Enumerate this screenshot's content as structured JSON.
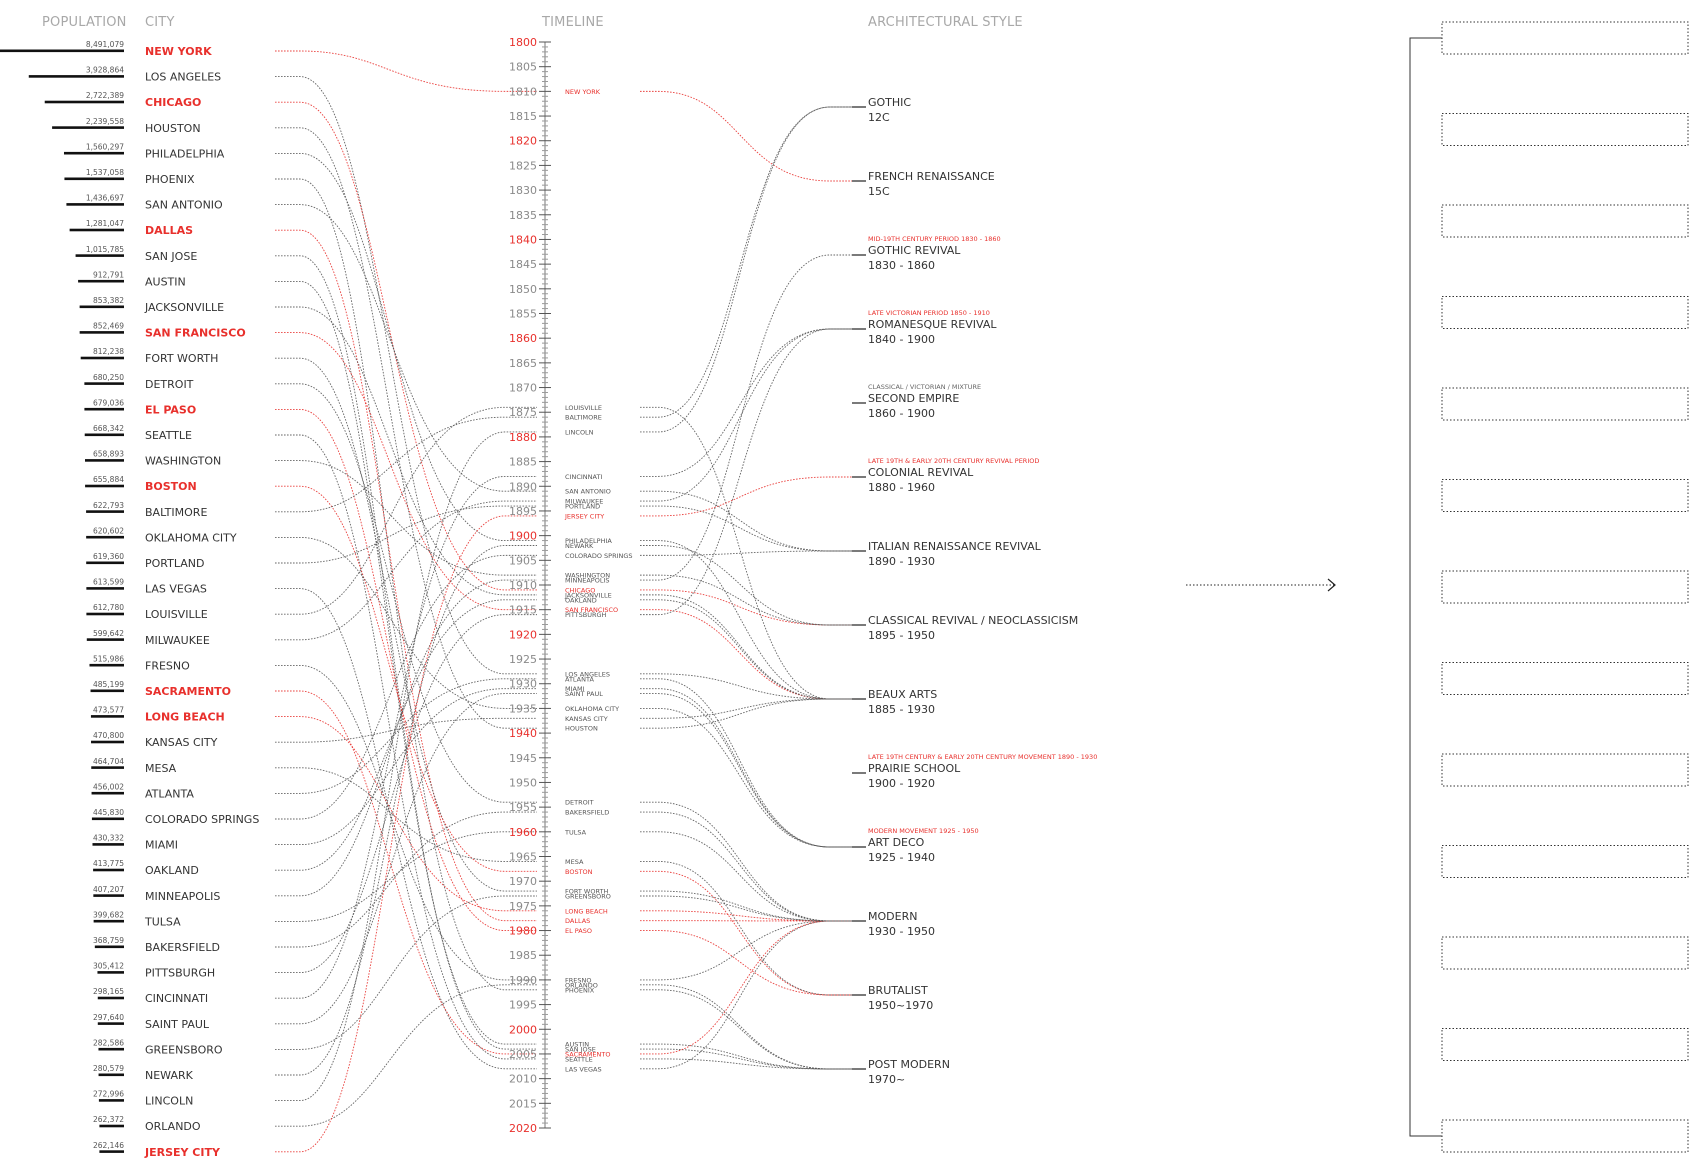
{
  "headers": {
    "population": "POPULATION",
    "city": "CITY",
    "timeline": "TIMELINE",
    "style": "ARCHITECTURAL STYLE"
  },
  "colors": {
    "highlight": "#e8302c",
    "grey": "#555555",
    "header": "#a8a8a8"
  },
  "cities": [
    {
      "name": "NEW YORK",
      "pop": "8,491,079",
      "value": 8491079,
      "hl": true,
      "year": 1810,
      "style": "FRENCH RENAISSANCE"
    },
    {
      "name": "LOS ANGELES",
      "pop": "3,928,864",
      "value": 3928864,
      "hl": false,
      "year": 1928,
      "style": "BEAUX ARTS"
    },
    {
      "name": "CHICAGO",
      "pop": "2,722,389",
      "value": 2722389,
      "hl": true,
      "year": 1911,
      "style": "CLASSICAL REVIVAL / NEOCLASSICISM"
    },
    {
      "name": "HOUSTON",
      "pop": "2,239,558",
      "value": 2239558,
      "hl": false,
      "year": 1939,
      "style": "BEAUX ARTS"
    },
    {
      "name": "PHILADELPHIA",
      "pop": "1,560,297",
      "value": 1560297,
      "hl": false,
      "year": 1901,
      "style": "BEAUX ARTS"
    },
    {
      "name": "PHOENIX",
      "pop": "1,537,058",
      "value": 1537058,
      "hl": false,
      "year": 1992,
      "style": "POST MODERN"
    },
    {
      "name": "SAN ANTONIO",
      "pop": "1,436,697",
      "value": 1436697,
      "hl": false,
      "year": 1891,
      "style": "ITALIAN RENAISSANCE REVIVAL"
    },
    {
      "name": "DALLAS",
      "pop": "1,281,047",
      "value": 1281047,
      "hl": true,
      "year": 1978,
      "style": "MODERN"
    },
    {
      "name": "SAN JOSE",
      "pop": "1,015,785",
      "value": 1015785,
      "hl": false,
      "year": 2004,
      "style": "POST MODERN"
    },
    {
      "name": "AUSTIN",
      "pop": "912,791",
      "value": 912791,
      "hl": false,
      "year": 2003,
      "style": "POST MODERN"
    },
    {
      "name": "JACKSONVILLE",
      "pop": "853,382",
      "value": 853382,
      "hl": false,
      "year": 1912,
      "style": "BEAUX ARTS"
    },
    {
      "name": "SAN FRANCISCO",
      "pop": "852,469",
      "value": 852469,
      "hl": true,
      "year": 1915,
      "style": "BEAUX ARTS"
    },
    {
      "name": "FORT WORTH",
      "pop": "812,238",
      "value": 812238,
      "hl": false,
      "year": 1972,
      "style": "MODERN"
    },
    {
      "name": "DETROIT",
      "pop": "680,250",
      "value": 680250,
      "hl": false,
      "year": 1954,
      "style": "MODERN"
    },
    {
      "name": "EL PASO",
      "pop": "679,036",
      "value": 679036,
      "hl": true,
      "year": 1980,
      "style": "BRUTALIST"
    },
    {
      "name": "SEATTLE",
      "pop": "668,342",
      "value": 668342,
      "hl": false,
      "year": 2006,
      "style": "POST MODERN"
    },
    {
      "name": "WASHINGTON",
      "pop": "658,893",
      "value": 658893,
      "hl": false,
      "year": 1908,
      "style": "CLASSICAL REVIVAL / NEOCLASSICISM"
    },
    {
      "name": "BOSTON",
      "pop": "655,884",
      "value": 655884,
      "hl": true,
      "year": 1968,
      "style": "BRUTALIST"
    },
    {
      "name": "BALTIMORE",
      "pop": "622,793",
      "value": 622793,
      "hl": false,
      "year": 1876,
      "style": "GOTHIC"
    },
    {
      "name": "OKLAHOMA CITY",
      "pop": "620,602",
      "value": 620602,
      "hl": false,
      "year": 1935,
      "style": "ART DECO"
    },
    {
      "name": "PORTLAND",
      "pop": "619,360",
      "value": 619360,
      "hl": false,
      "year": 1894,
      "style": "ITALIAN RENAISSANCE REVIVAL"
    },
    {
      "name": "LAS VEGAS",
      "pop": "613,599",
      "value": 613599,
      "hl": false,
      "year": 2008,
      "style": "MODERN"
    },
    {
      "name": "LOUISVILLE",
      "pop": "612,780",
      "value": 612780,
      "hl": false,
      "year": 1874,
      "style": "BEAUX ARTS"
    },
    {
      "name": "MILWAUKEE",
      "pop": "599,642",
      "value": 599642,
      "hl": false,
      "year": 1893,
      "style": "ROMANESQUE REVIVAL"
    },
    {
      "name": "FRESNO",
      "pop": "515,986",
      "value": 515986,
      "hl": false,
      "year": 1990,
      "style": "MODERN"
    },
    {
      "name": "SACRAMENTO",
      "pop": "485,199",
      "value": 485199,
      "hl": true,
      "year": 2005,
      "style": "MODERN"
    },
    {
      "name": "LONG BEACH",
      "pop": "473,577",
      "value": 473577,
      "hl": true,
      "year": 1976,
      "style": "MODERN"
    },
    {
      "name": "KANSAS CITY",
      "pop": "470,800",
      "value": 470800,
      "hl": false,
      "year": 1937,
      "style": "BEAUX ARTS"
    },
    {
      "name": "MESA",
      "pop": "464,704",
      "value": 464704,
      "hl": false,
      "year": 1966,
      "style": "BRUTALIST"
    },
    {
      "name": "ATLANTA",
      "pop": "456,002",
      "value": 456002,
      "hl": false,
      "year": 1929,
      "style": "ART DECO"
    },
    {
      "name": "COLORADO SPRINGS",
      "pop": "445,830",
      "value": 445830,
      "hl": false,
      "year": 1904,
      "style": "ITALIAN RENAISSANCE REVIVAL"
    },
    {
      "name": "MIAMI",
      "pop": "430,332",
      "value": 430332,
      "hl": false,
      "year": 1931,
      "style": "ART DECO"
    },
    {
      "name": "OAKLAND",
      "pop": "413,775",
      "value": 413775,
      "hl": false,
      "year": 1913,
      "style": "BEAUX ARTS"
    },
    {
      "name": "MINNEAPOLIS",
      "pop": "407,207",
      "value": 407207,
      "hl": false,
      "year": 1909,
      "style": "GOTHIC REVIVAL"
    },
    {
      "name": "TULSA",
      "pop": "399,682",
      "value": 399682,
      "hl": false,
      "year": 1960,
      "style": "MODERN"
    },
    {
      "name": "BAKERSFIELD",
      "pop": "368,759",
      "value": 368759,
      "hl": false,
      "year": 1956,
      "style": "MODERN"
    },
    {
      "name": "PITTSBURGH",
      "pop": "305,412",
      "value": 305412,
      "hl": false,
      "year": 1916,
      "style": "ROMANESQUE REVIVAL"
    },
    {
      "name": "CINCINNATI",
      "pop": "298,165",
      "value": 298165,
      "hl": false,
      "year": 1888,
      "style": "ROMANESQUE REVIVAL"
    },
    {
      "name": "SAINT PAUL",
      "pop": "297,640",
      "value": 297640,
      "hl": false,
      "year": 1932,
      "style": "ART DECO"
    },
    {
      "name": "GREENSBORO",
      "pop": "282,586",
      "value": 282586,
      "hl": false,
      "year": 1973,
      "style": "MODERN"
    },
    {
      "name": "NEWARK",
      "pop": "280,579",
      "value": 280579,
      "hl": false,
      "year": 1902,
      "style": "CLASSICAL REVIVAL / NEOCLASSICISM"
    },
    {
      "name": "LINCOLN",
      "pop": "272,996",
      "value": 272996,
      "hl": false,
      "year": 1879,
      "style": "GOTHIC"
    },
    {
      "name": "ORLANDO",
      "pop": "262,372",
      "value": 262372,
      "hl": false,
      "year": 1991,
      "style": "POST MODERN"
    },
    {
      "name": "JERSEY CITY",
      "pop": "262,146",
      "value": 262146,
      "hl": true,
      "year": 1896,
      "style": "COLONIAL REVIVAL"
    }
  ],
  "timeline": {
    "start": 1800,
    "end": 2020,
    "labels": [
      "1800",
      "1805",
      "1810",
      "1815",
      "1820",
      "1825",
      "1830",
      "1835",
      "1840",
      "1845",
      "1850",
      "1855",
      "1860",
      "1865",
      "1870",
      "1875",
      "1880",
      "1885",
      "1890",
      "1895",
      "1900",
      "1905",
      "1910",
      "1915",
      "1920",
      "1925",
      "1930",
      "1935",
      "1940",
      "1945",
      "1950",
      "1955",
      "1960",
      "1965",
      "1970",
      "1975",
      "1980",
      "1985",
      "1990",
      "1995",
      "2000",
      "2005",
      "2010",
      "2015",
      "2020"
    ],
    "highlight_years": [
      "1800",
      "1820",
      "1840",
      "1860",
      "1880",
      "1900",
      "1920",
      "1940",
      "1960",
      "1980",
      "2000",
      "2020"
    ]
  },
  "styles": [
    {
      "name": "GOTHIC",
      "range": "12C",
      "note": "",
      "note_hl": false
    },
    {
      "name": "FRENCH RENAISSANCE",
      "range": "15C",
      "note": "",
      "note_hl": false
    },
    {
      "name": "GOTHIC REVIVAL",
      "range": "1830 - 1860",
      "note": "MID-19TH CENTURY PERIOD 1830 - 1860",
      "note_hl": true
    },
    {
      "name": "ROMANESQUE REVIVAL",
      "range": "1840 - 1900",
      "note": "LATE VICTORIAN PERIOD 1850 - 1910",
      "note_hl": true
    },
    {
      "name": "SECOND EMPIRE",
      "range": "1860 - 1900",
      "note": "CLASSICAL / VICTORIAN / MIXTURE",
      "note_hl": false
    },
    {
      "name": "COLONIAL REVIVAL",
      "range": "1880 - 1960",
      "note": "LATE 19TH & EARLY 20TH CENTURY REVIVAL PERIOD",
      "note_hl": true
    },
    {
      "name": "ITALIAN RENAISSANCE REVIVAL",
      "range": "1890 - 1930",
      "note": "",
      "note_hl": false
    },
    {
      "name": "CLASSICAL REVIVAL / NEOCLASSICISM",
      "range": "1895 - 1950",
      "note": "",
      "note_hl": false
    },
    {
      "name": "BEAUX ARTS",
      "range": "1885 - 1930",
      "note": "",
      "note_hl": false
    },
    {
      "name": "PRAIRIE SCHOOL",
      "range": "1900 - 1920",
      "note": "LATE 19TH CENTURY & EARLY 20TH CENTURY MOVEMENT 1890 - 1930",
      "note_hl": true
    },
    {
      "name": "ART DECO",
      "range": "1925 - 1940",
      "note": "MODERN MOVEMENT 1925 - 1950",
      "note_hl": true
    },
    {
      "name": "MODERN",
      "range": "1930 - 1950",
      "note": "",
      "note_hl": false
    },
    {
      "name": "BRUTALIST",
      "range": "1950~1970",
      "note": "",
      "note_hl": false
    },
    {
      "name": "POST MODERN",
      "range": "1970~",
      "note": "",
      "note_hl": false
    }
  ],
  "empty_boxes": 13
}
